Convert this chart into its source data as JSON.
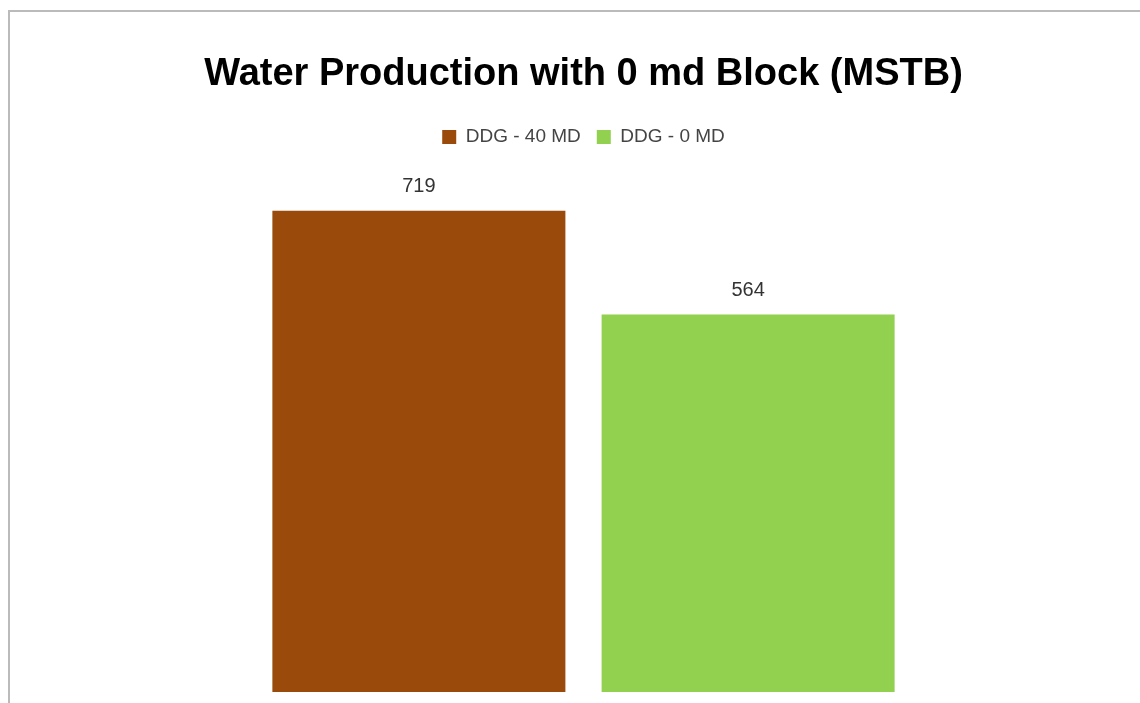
{
  "chart_data": {
    "type": "bar",
    "title": "Water Production with 0 md Block (MSTB)",
    "categories": [
      null
    ],
    "series": [
      {
        "name": "DDG - 40 MD",
        "color": "#9a4a0a",
        "values": [
          719
        ]
      },
      {
        "name": "DDG - 0 MD",
        "color": "#92d050",
        "values": [
          564
        ]
      }
    ],
    "data_labels": true,
    "legend": "top"
  }
}
